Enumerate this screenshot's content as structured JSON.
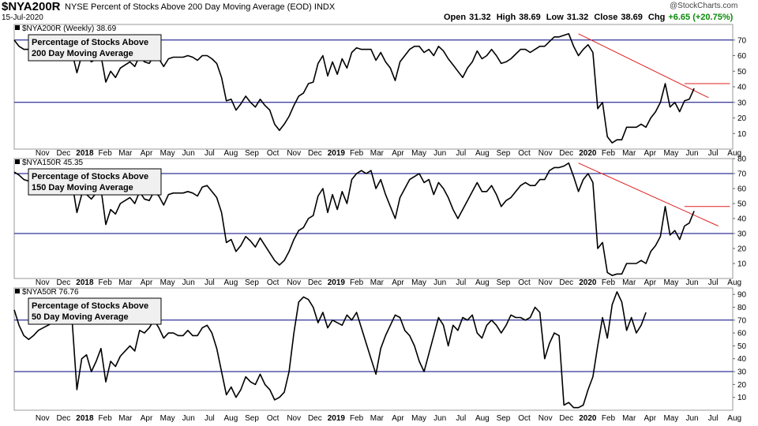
{
  "header": {
    "symbol": "$NYA200R",
    "description": "NYSE Percent of Stocks Above 200 Day Moving Average (EOD) INDX",
    "date": "15-Jul-2020",
    "copyright": "@StockCharts.com",
    "quote": {
      "open_label": "Open",
      "open": "31.32",
      "high_label": "High",
      "high": "38.69",
      "low_label": "Low",
      "low": "31.32",
      "close_label": "Close",
      "close": "38.69",
      "chg_label": "Chg",
      "chg": "+6.65 (+20.75%)"
    }
  },
  "colors": {
    "line": "#000000",
    "ref_line": "#000080",
    "trendline": "#e02020",
    "frame": "#999999",
    "box_bg": "#f0f0f0"
  },
  "month_labels": [
    "Nov",
    "Dec",
    "2018",
    "Feb",
    "Mar",
    "Apr",
    "May",
    "Jun",
    "Jul",
    "Aug",
    "Sep",
    "Oct",
    "Nov",
    "Dec",
    "2019",
    "Feb",
    "Mar",
    "Apr",
    "May",
    "Jun",
    "Jul",
    "Aug",
    "Sep",
    "Oct",
    "Nov",
    "Dec",
    "2020",
    "Feb",
    "Mar",
    "Apr",
    "May",
    "Jun",
    "Jul",
    "Aug"
  ],
  "bold_labels": [
    "2018",
    "2019",
    "2020"
  ],
  "chart_data": [
    {
      "type": "line",
      "panel": "top",
      "legend": "$NYA200R (Weekly) 38.69",
      "box_title_1": "Percentage of Stocks Above",
      "box_title_2": "200 Day Moving Average",
      "ylim": [
        0,
        80
      ],
      "yticks": [
        10,
        20,
        30,
        40,
        50,
        60,
        70
      ],
      "ref_lines": [
        70,
        30
      ],
      "trendlines": [
        {
          "x1": "2020-01-03",
          "y1": 74,
          "x2": "2020-07-10",
          "y2": 33
        },
        {
          "x1": "2020-06-05",
          "y1": 42,
          "x2": "2020-08-10",
          "y2": 42
        }
      ],
      "start": "2017-10-06",
      "values": [
        70,
        66,
        64,
        64,
        62,
        62,
        64,
        63,
        64,
        66,
        66,
        66,
        62,
        49,
        60,
        60,
        56,
        58,
        60,
        43,
        50,
        46,
        52,
        54,
        56,
        53,
        60,
        56,
        55,
        60,
        58,
        53,
        58,
        59,
        59,
        59,
        60,
        59,
        57,
        60,
        60,
        58,
        55,
        46,
        31,
        32,
        25,
        29,
        34,
        30,
        27,
        32,
        28,
        25,
        16,
        12,
        16,
        21,
        28,
        34,
        36,
        42,
        43,
        55,
        60,
        47,
        56,
        48,
        58,
        52,
        62,
        65,
        64,
        64,
        64,
        57,
        62,
        56,
        52,
        44,
        56,
        60,
        64,
        66,
        66,
        62,
        64,
        60,
        66,
        63,
        58,
        54,
        50,
        46,
        52,
        56,
        63,
        58,
        60,
        64,
        60,
        55,
        56,
        58,
        61,
        64,
        64,
        62,
        64,
        66,
        66,
        69,
        72,
        72,
        73,
        74,
        66,
        60,
        64,
        67,
        62,
        26,
        30,
        8,
        4,
        6,
        6,
        14,
        14,
        14,
        16,
        14,
        20,
        24,
        30,
        42,
        27,
        30,
        24,
        31,
        32,
        39
      ]
    },
    {
      "type": "line",
      "panel": "middle",
      "legend": "$NYA150R 45.35",
      "box_title_1": "Percentage of Stocks Above",
      "box_title_2": "150 Day Moving Average",
      "ylim": [
        0,
        80
      ],
      "yticks": [
        10,
        20,
        30,
        40,
        50,
        60,
        70,
        80
      ],
      "ref_lines": [
        70,
        30
      ],
      "trendlines": [
        {
          "x1": "2020-01-03",
          "y1": 77,
          "x2": "2020-07-24",
          "y2": 35
        },
        {
          "x1": "2020-06-05",
          "y1": 48,
          "x2": "2020-08-10",
          "y2": 48
        }
      ],
      "start": "2017-10-06",
      "values": [
        71,
        69,
        66,
        65,
        63,
        64,
        66,
        65,
        66,
        68,
        68,
        68,
        64,
        44,
        56,
        56,
        53,
        57,
        60,
        36,
        46,
        43,
        50,
        52,
        54,
        50,
        58,
        53,
        52,
        58,
        55,
        49,
        56,
        57,
        57,
        57,
        58,
        57,
        55,
        61,
        62,
        58,
        54,
        44,
        24,
        26,
        18,
        22,
        28,
        25,
        21,
        27,
        22,
        17,
        12,
        9,
        12,
        18,
        26,
        32,
        34,
        40,
        42,
        55,
        60,
        44,
        56,
        46,
        58,
        50,
        66,
        70,
        72,
        70,
        72,
        60,
        66,
        56,
        48,
        40,
        54,
        60,
        66,
        68,
        70,
        64,
        66,
        56,
        64,
        60,
        54,
        46,
        40,
        46,
        52,
        58,
        64,
        58,
        58,
        62,
        56,
        48,
        52,
        54,
        58,
        62,
        64,
        62,
        62,
        66,
        66,
        72,
        74,
        74,
        75,
        77,
        68,
        58,
        66,
        70,
        64,
        20,
        24,
        4,
        2,
        3,
        3,
        10,
        10,
        10,
        12,
        10,
        18,
        22,
        28,
        48,
        29,
        32,
        26,
        35,
        37,
        45
      ]
    },
    {
      "type": "line",
      "panel": "bottom",
      "legend": "$NYA50R 76.76",
      "box_title_1": "Percentage of Stocks Above",
      "box_title_2": "50 Day Moving Average",
      "ylim": [
        0,
        95
      ],
      "yticks": [
        10,
        20,
        30,
        40,
        50,
        60,
        70,
        80,
        90
      ],
      "ref_lines": [
        70,
        30
      ],
      "trendlines": [],
      "start": "2017-10-06",
      "values": [
        78,
        66,
        58,
        55,
        58,
        62,
        64,
        66,
        68,
        78,
        80,
        78,
        70,
        16,
        40,
        43,
        30,
        38,
        48,
        22,
        38,
        34,
        42,
        46,
        50,
        46,
        62,
        60,
        64,
        70,
        64,
        56,
        60,
        60,
        58,
        58,
        62,
        58,
        58,
        64,
        66,
        60,
        48,
        30,
        12,
        18,
        10,
        16,
        26,
        22,
        20,
        28,
        20,
        16,
        8,
        10,
        14,
        30,
        60,
        84,
        88,
        86,
        80,
        68,
        76,
        64,
        70,
        68,
        66,
        74,
        70,
        76,
        64,
        52,
        40,
        28,
        48,
        58,
        66,
        74,
        72,
        62,
        58,
        50,
        38,
        30,
        44,
        58,
        72,
        66,
        50,
        66,
        62,
        72,
        70,
        74,
        60,
        56,
        66,
        70,
        66,
        60,
        66,
        74,
        72,
        72,
        70,
        72,
        80,
        76,
        40,
        52,
        60,
        58,
        4,
        6,
        2,
        2,
        4,
        16,
        26,
        50,
        72,
        56,
        82,
        92,
        84,
        62,
        72,
        60,
        66,
        76
      ]
    }
  ]
}
